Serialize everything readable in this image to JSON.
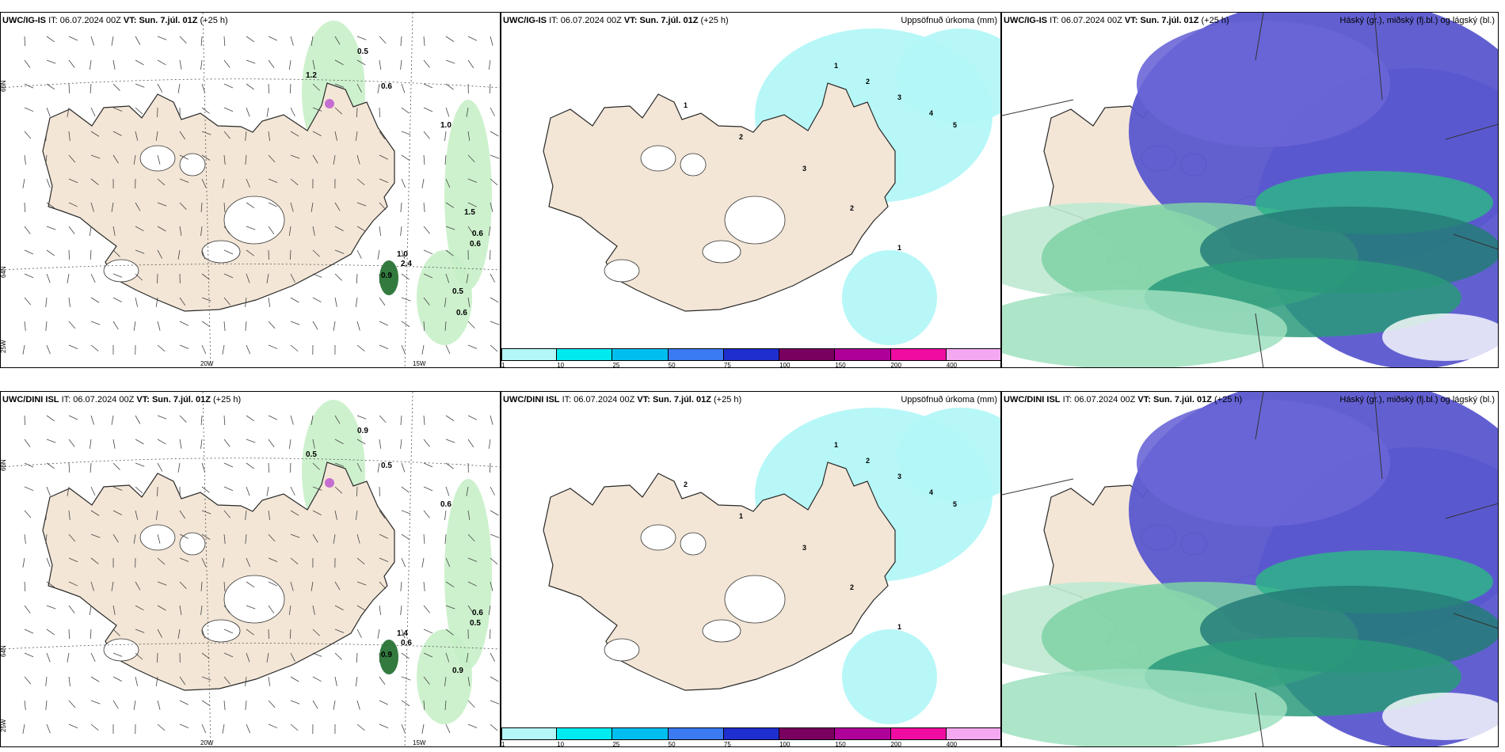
{
  "legend_scale": {
    "ticks": [
      "1",
      "10",
      "25",
      "50",
      "75",
      "100",
      "150",
      "200",
      "400"
    ],
    "colors": [
      "#b3f7f8",
      "#00eaf0",
      "#00bff0",
      "#3b7af2",
      "#1f2fcf",
      "#7a0060",
      "#b0009a",
      "#f00ca0",
      "#f3a8f0"
    ]
  },
  "panels": [
    {
      "model": "UWC/IG-IS",
      "it_label": "IT:",
      "it": "06.07.2024 00Z",
      "vt_label": "VT:",
      "vt": "Sun. 7.júl. 01Z",
      "lead": "(+25 h)",
      "right": "",
      "kind": "wind",
      "axes": {
        "lat_top": "66N",
        "lat_bottom": "64N",
        "lon_left": "20W",
        "lon_right": "15W",
        "corner": "25W"
      },
      "values": [
        "0.5",
        "1.2",
        "0.6",
        "1.0",
        "0.6",
        "0.6",
        "1.0",
        "2.4",
        "0.9",
        "0.5",
        "0.6",
        "1.5"
      ]
    },
    {
      "model": "UWC/IG-IS",
      "it_label": "IT:",
      "it": "06.07.2024 00Z",
      "vt_label": "VT:",
      "vt": "Sun. 7.júl. 01Z",
      "lead": "(+25 h)",
      "right": "Uppsöfnuð úrkoma (mm)",
      "kind": "precip",
      "values": [
        "1",
        "2",
        "3",
        "4",
        "5",
        "1",
        "2",
        "3",
        "2",
        "1"
      ]
    },
    {
      "model": "UWC/IG-IS",
      "it_label": "IT:",
      "it": "06.07.2024 00Z",
      "vt_label": "VT:",
      "vt": "Sun. 7.júl. 01Z",
      "lead": "(+25 h)",
      "right": "Háský (gr.), miðský (fj.bl.) og lágský (bl.)",
      "kind": "cloud"
    },
    {
      "model": "UWC/DINI ISL",
      "it_label": "IT:",
      "it": "06.07.2024 00Z",
      "vt_label": "VT:",
      "vt": "Sun. 7.júl. 01Z",
      "lead": "(+25 h)",
      "right": "",
      "kind": "wind",
      "axes": {
        "lat_top": "66N",
        "lat_bottom": "64N",
        "lon_left": "20W",
        "lon_right": "15W",
        "corner": "25W"
      },
      "values": [
        "0.9",
        "0.5",
        "0.5",
        "0.6",
        "0.6",
        "0.5",
        "1.4",
        "0.6",
        "0.9",
        "0.9"
      ]
    },
    {
      "model": "UWC/DINI ISL",
      "it_label": "IT:",
      "it": "06.07.2024 00Z",
      "vt_label": "VT:",
      "vt": "Sun. 7.júl. 01Z",
      "lead": "(+25 h)",
      "right": "Uppsöfnuð úrkoma (mm)",
      "kind": "precip",
      "values": [
        "1",
        "2",
        "3",
        "4",
        "5",
        "2",
        "1",
        "3",
        "2",
        "1"
      ]
    },
    {
      "model": "UWC/DINI ISL",
      "it_label": "IT:",
      "it": "06.07.2024 00Z",
      "vt_label": "VT:",
      "vt": "Sun. 7.júl. 01Z",
      "lead": "(+25 h)",
      "right": "Háský (gr.), miðský (fj.bl.) og lágský (bl.)",
      "kind": "cloud"
    }
  ]
}
